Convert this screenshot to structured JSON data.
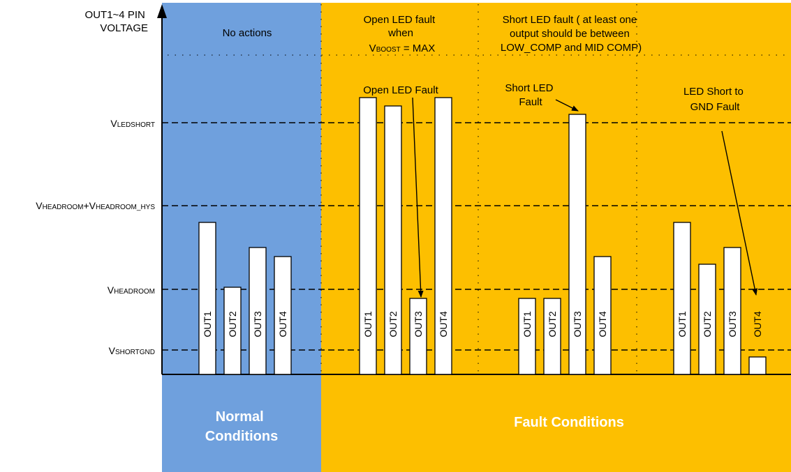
{
  "axis": {
    "y_title": [
      "OUT1~4 PIN",
      "VOLTAGE"
    ]
  },
  "colors": {
    "normal_region": "#6fa0dd",
    "fault_region": "#fdbf00",
    "bar_fill": "#ffffff",
    "line": "#000000",
    "section_text": "#ffffff"
  },
  "thresholds": [
    {
      "id": "vledshort",
      "base": "V",
      "sub": "LEDSHORT",
      "base2": "",
      "sub2": ""
    },
    {
      "id": "vheadroom_hys",
      "base": "V",
      "sub": "HEADROOM",
      "base2": "+V",
      "sub2": "HEADROOM_HYS"
    },
    {
      "id": "vheadroom",
      "base": "V",
      "sub": "HEADROOM",
      "base2": "",
      "sub2": ""
    },
    {
      "id": "vshortgnd",
      "base": "V",
      "sub": "SHORTGND",
      "base2": "",
      "sub2": ""
    }
  ],
  "regions": {
    "normal": {
      "header": "No actions",
      "footer": [
        "Normal",
        "Conditions"
      ]
    },
    "fault": {
      "footer": "Fault Conditions",
      "open_header": [
        "Open LED fault",
        "when"
      ],
      "open_header_formula": {
        "base": "V",
        "sub": "BOOST",
        "rest": " = MAX"
      },
      "short_header": [
        "Short LED fault ( at least one",
        "output should be between",
        "LOW_COMP and MID COMP)"
      ]
    }
  },
  "groups": [
    {
      "id": "normal",
      "annotation": [],
      "bars": [
        {
          "label": "OUT1",
          "level": "above-headroom"
        },
        {
          "label": "OUT2",
          "level": "near-headroom"
        },
        {
          "label": "OUT3",
          "level": "above-headroom"
        },
        {
          "label": "OUT4",
          "level": "above-headroom"
        }
      ]
    },
    {
      "id": "open-led",
      "annotation": [
        "Open LED Fault"
      ],
      "bars": [
        {
          "label": "OUT1",
          "level": "above-ledshort"
        },
        {
          "label": "OUT2",
          "level": "near-ledshort"
        },
        {
          "label": "OUT3",
          "level": "below-headroom"
        },
        {
          "label": "OUT4",
          "level": "above-ledshort"
        }
      ]
    },
    {
      "id": "short-led",
      "annotation": [
        "Short LED",
        "Fault"
      ],
      "bars": [
        {
          "label": "OUT1",
          "level": "below-headroom"
        },
        {
          "label": "OUT2",
          "level": "below-headroom"
        },
        {
          "label": "OUT3",
          "level": "above-ledshort"
        },
        {
          "label": "OUT4",
          "level": "above-headroom"
        }
      ]
    },
    {
      "id": "short-gnd",
      "annotation": [
        "LED Short to",
        "GND Fault"
      ],
      "bars": [
        {
          "label": "OUT1",
          "level": "above-headroom"
        },
        {
          "label": "OUT2",
          "level": "above-headroom"
        },
        {
          "label": "OUT3",
          "level": "above-headroom"
        },
        {
          "label": "OUT4",
          "level": "below-shortgnd"
        }
      ]
    }
  ]
}
